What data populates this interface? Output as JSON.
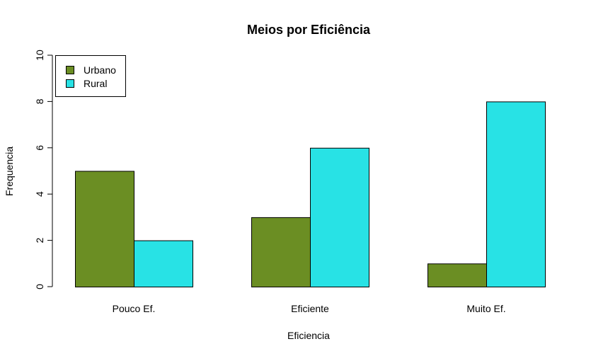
{
  "chart_data": {
    "type": "bar",
    "title": "Meios por Eficiência",
    "xlabel": "Eficiencia",
    "ylabel": "Frequencia",
    "categories": [
      "Pouco Ef.",
      "Eficiente",
      "Muito Ef."
    ],
    "series": [
      {
        "name": "Urbano",
        "values": [
          5,
          3,
          1
        ],
        "color": "#6b8e23"
      },
      {
        "name": "Rural",
        "values": [
          2,
          6,
          8
        ],
        "color": "#28e2e5"
      }
    ],
    "ylim": [
      0,
      10
    ],
    "yticks": [
      0,
      2,
      4,
      6,
      8,
      10
    ],
    "grid": false,
    "legend_position": "top-left"
  }
}
